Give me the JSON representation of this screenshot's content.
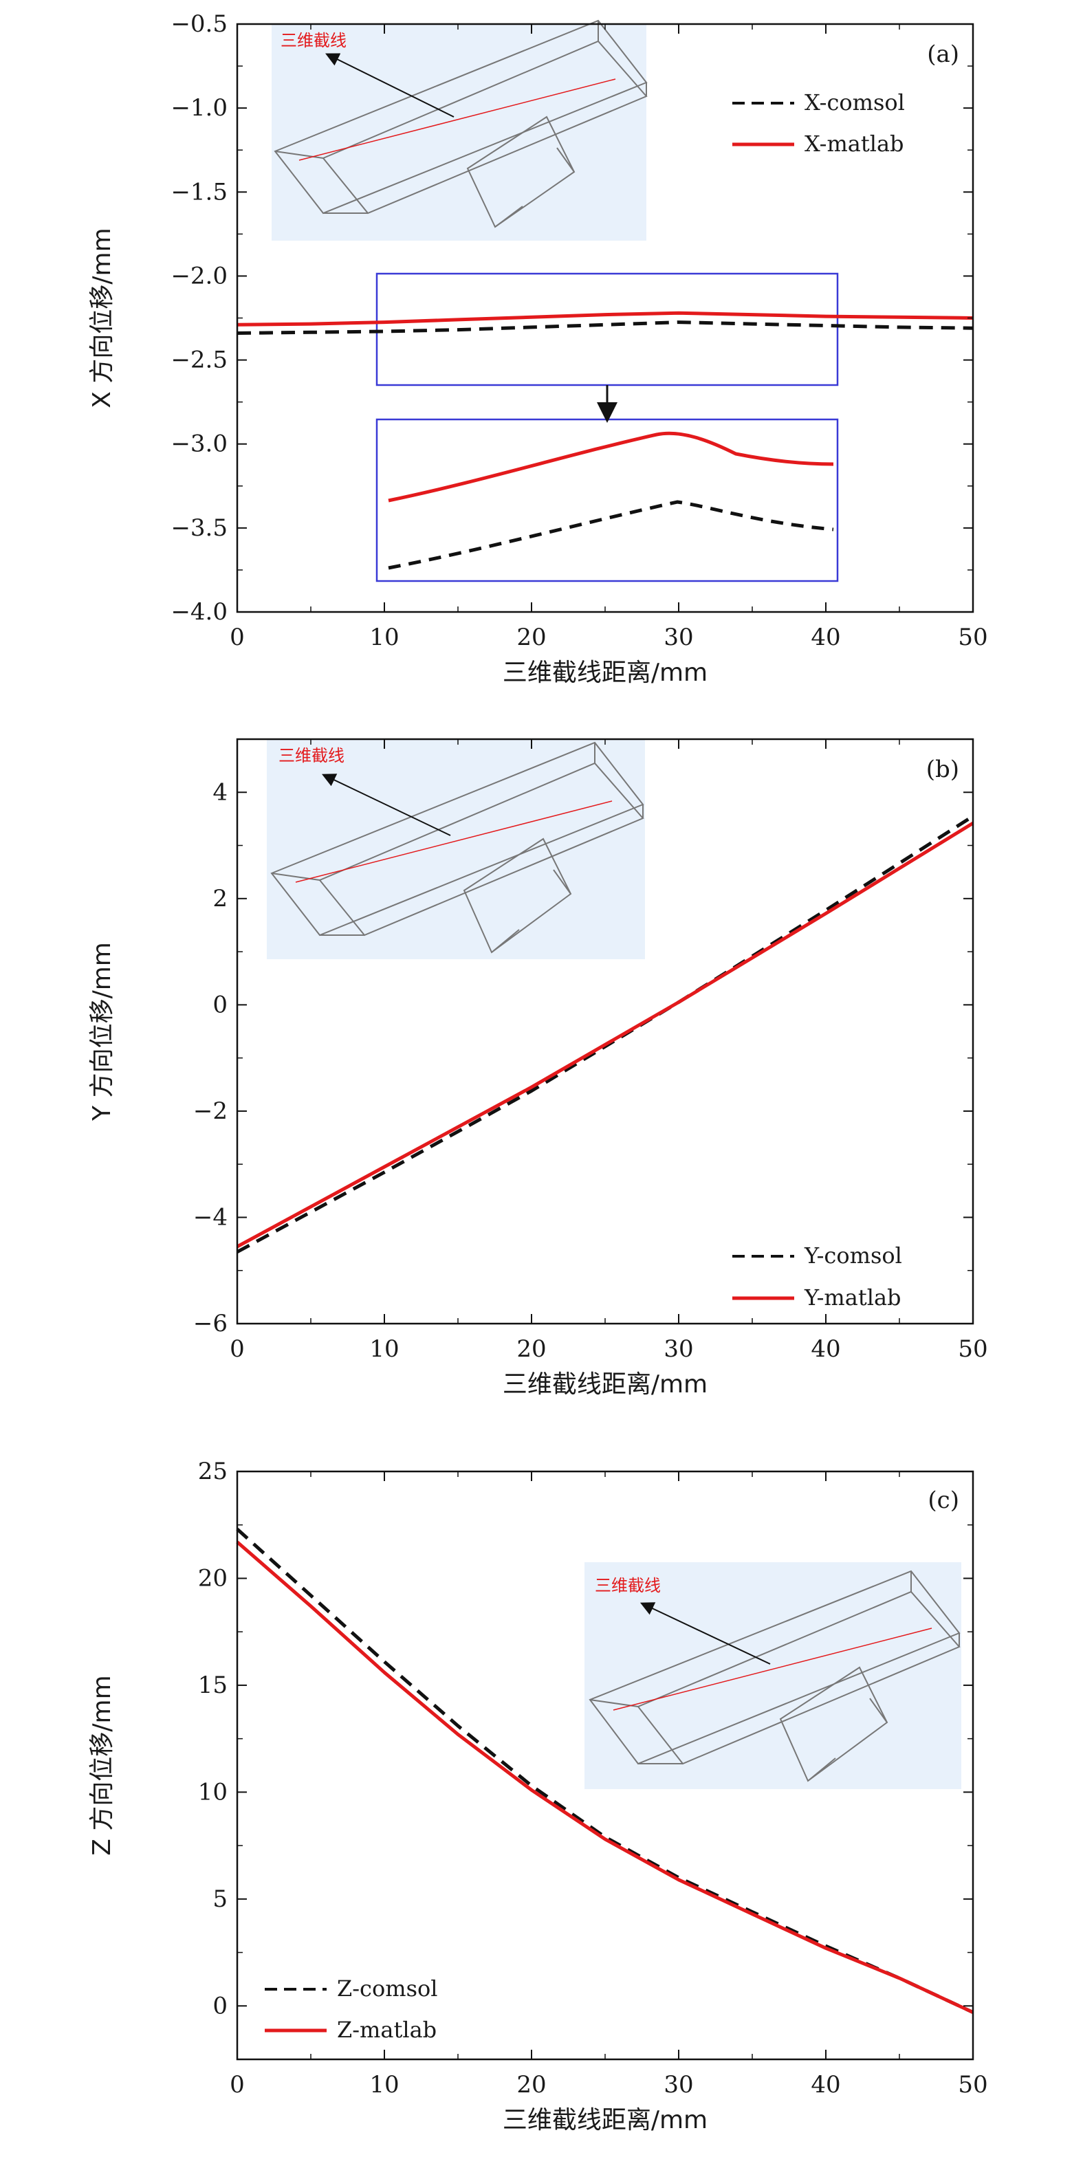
{
  "colors": {
    "comsol": "#111111",
    "matlab": "#e31a1c",
    "inset_bg": "#e8f1fb",
    "zoom_box": "#3a3ad6",
    "inset_line": "#777777",
    "inset_label": "#e31a1c"
  },
  "chart_data": [
    {
      "type": "line",
      "panel_label": "(a)",
      "xlabel": "三维截线距离/mm",
      "ylabel": "X 方向位移/mm",
      "xlim": [
        0,
        50
      ],
      "ylim": [
        -4.0,
        -0.5
      ],
      "x_ticks": [
        "0",
        "10",
        "20",
        "30",
        "40",
        "50"
      ],
      "y_ticks": [
        "−0.5",
        "−1.0",
        "−1.5",
        "−2.0",
        "−2.5",
        "−3.0",
        "−3.5",
        "−4.0"
      ],
      "inset_label": "三维截线",
      "legend": [
        "X-comsol",
        "X-matlab"
      ],
      "series": [
        {
          "name": "X-comsol",
          "style": "dashed",
          "x": [
            0,
            5,
            10,
            15,
            20,
            25,
            30,
            35,
            40,
            45,
            50
          ],
          "y": [
            -2.34,
            -2.335,
            -2.33,
            -2.32,
            -2.305,
            -2.29,
            -2.275,
            -2.285,
            -2.295,
            -2.305,
            -2.31
          ]
        },
        {
          "name": "X-matlab",
          "style": "solid",
          "x": [
            0,
            5,
            10,
            15,
            20,
            25,
            30,
            35,
            40,
            45,
            50
          ],
          "y": [
            -2.29,
            -2.285,
            -2.275,
            -2.26,
            -2.245,
            -2.23,
            -2.22,
            -2.23,
            -2.24,
            -2.245,
            -2.25
          ]
        }
      ]
    },
    {
      "type": "line",
      "panel_label": "(b)",
      "xlabel": "三维截线距离/mm",
      "ylabel": "Y 方向位移/mm",
      "xlim": [
        0,
        50
      ],
      "ylim": [
        -6,
        5
      ],
      "x_ticks": [
        "0",
        "10",
        "20",
        "30",
        "40",
        "50"
      ],
      "y_ticks": [
        "4",
        "2",
        "0",
        "−2",
        "−4",
        "−6"
      ],
      "inset_label": "三维截线",
      "legend": [
        "Y-comsol",
        "Y-matlab"
      ],
      "series": [
        {
          "name": "Y-comsol",
          "style": "dashed",
          "x": [
            0,
            10,
            20,
            30,
            40,
            50
          ],
          "y": [
            -4.65,
            -3.15,
            -1.62,
            0.05,
            1.78,
            3.55
          ]
        },
        {
          "name": "Y-matlab",
          "style": "solid",
          "x": [
            0,
            10,
            20,
            30,
            40,
            50
          ],
          "y": [
            -4.55,
            -3.05,
            -1.55,
            0.05,
            1.72,
            3.42
          ]
        }
      ]
    },
    {
      "type": "line",
      "panel_label": "(c)",
      "xlabel": "三维截线距离/mm",
      "ylabel": "Z 方向位移/mm",
      "xlim": [
        0,
        50
      ],
      "ylim": [
        -2.5,
        25
      ],
      "x_ticks": [
        "0",
        "10",
        "20",
        "30",
        "40",
        "50"
      ],
      "y_ticks": [
        "25",
        "20",
        "15",
        "10",
        "5",
        "0"
      ],
      "inset_label": "三维截线",
      "legend": [
        "Z-comsol",
        "Z-matlab"
      ],
      "series": [
        {
          "name": "Z-comsol",
          "style": "dashed",
          "x": [
            0,
            5,
            10,
            15,
            20,
            25,
            30,
            35,
            40,
            45,
            50
          ],
          "y": [
            22.3,
            19.2,
            16.1,
            13.1,
            10.3,
            7.9,
            6.0,
            4.4,
            2.8,
            1.3,
            -0.3
          ]
        },
        {
          "name": "Z-matlab",
          "style": "solid",
          "x": [
            0,
            5,
            10,
            15,
            20,
            25,
            30,
            35,
            40,
            45,
            50
          ],
          "y": [
            21.7,
            18.7,
            15.6,
            12.7,
            10.1,
            7.8,
            5.9,
            4.3,
            2.7,
            1.3,
            -0.3
          ]
        }
      ]
    }
  ]
}
